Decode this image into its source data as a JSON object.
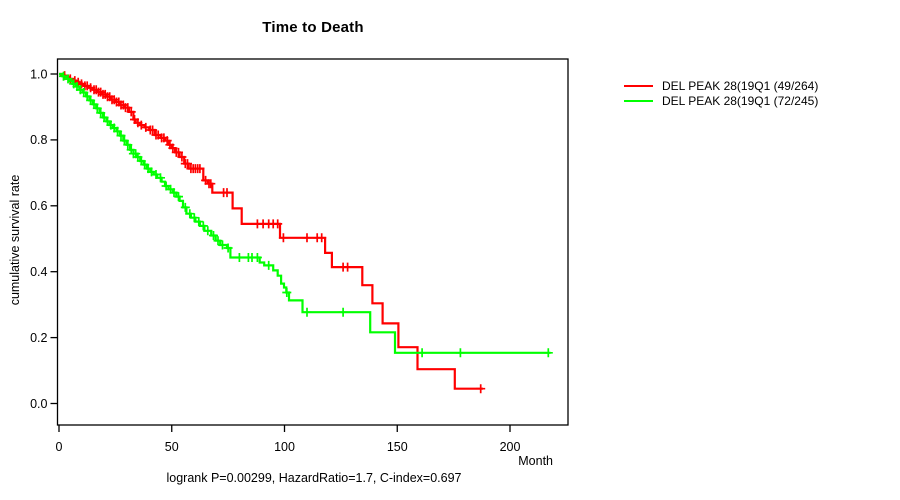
{
  "chart_data": {
    "type": "line",
    "subtype": "kaplan-meier-step",
    "title": "Time to Death",
    "xlabel": "Month",
    "ylabel": "cumulative survival rate",
    "annotation": "logrank P=0.00299, HazardRatio=1.7, C-index=0.697",
    "grid": false,
    "legend_position": "right-outside",
    "axis_color": "#000000",
    "background": "#ffffff",
    "xlim": [
      0,
      226
    ],
    "ylim": [
      0,
      1.0
    ],
    "x_axis": {
      "values": [
        0,
        50,
        100,
        150,
        200
      ],
      "labels": [
        "0",
        "50",
        "100",
        "150",
        "200"
      ]
    },
    "y_axis": {
      "values": [
        0,
        0.2,
        0.4,
        0.6,
        0.8,
        1.0
      ],
      "labels": [
        "0.0",
        "0.2",
        "0.4",
        "0.6",
        "0.8",
        "1.0"
      ]
    },
    "series": [
      {
        "name": "DEL PEAK 28(19Q1 (49/264)",
        "color": "#ff0000",
        "events_over_n": "49/264",
        "end_month": 188,
        "steps": [
          [
            0,
            1.0
          ],
          [
            1.5,
            0.995
          ],
          [
            3,
            0.99
          ],
          [
            4.5,
            0.985
          ],
          [
            6,
            0.98
          ],
          [
            7.5,
            0.975
          ],
          [
            9,
            0.97
          ],
          [
            11,
            0.964
          ],
          [
            13,
            0.958
          ],
          [
            15,
            0.952
          ],
          [
            17,
            0.945
          ],
          [
            19,
            0.938
          ],
          [
            21,
            0.931
          ],
          [
            23,
            0.922
          ],
          [
            25,
            0.915
          ],
          [
            27,
            0.906
          ],
          [
            29,
            0.898
          ],
          [
            31,
            0.885
          ],
          [
            33,
            0.862
          ],
          [
            34,
            0.852
          ],
          [
            36,
            0.845
          ],
          [
            38,
            0.838
          ],
          [
            40,
            0.83
          ],
          [
            42.5,
            0.815
          ],
          [
            45,
            0.806
          ],
          [
            47,
            0.798
          ],
          [
            48.5,
            0.785
          ],
          [
            50,
            0.775
          ],
          [
            51.5,
            0.762
          ],
          [
            53.5,
            0.748
          ],
          [
            55.5,
            0.728
          ],
          [
            57.5,
            0.713
          ],
          [
            64,
            0.677
          ],
          [
            66,
            0.667
          ],
          [
            68,
            0.64
          ],
          [
            77,
            0.592
          ],
          [
            81,
            0.545
          ],
          [
            98,
            0.503
          ],
          [
            118,
            0.457
          ],
          [
            121,
            0.414
          ],
          [
            134.5,
            0.359
          ],
          [
            139,
            0.304
          ],
          [
            143.5,
            0.243
          ],
          [
            150.5,
            0.171
          ],
          [
            159,
            0.104
          ],
          [
            175.5,
            0.045
          ]
        ],
        "censor_months": [
          2.5,
          5,
          7,
          8.5,
          10,
          11.5,
          12.5,
          14,
          15.5,
          16.5,
          17.5,
          18.5,
          19.5,
          20.5,
          21.5,
          22.5,
          23.5,
          24.5,
          25.5,
          26.5,
          27.5,
          28.5,
          29.5,
          30.5,
          32,
          33.5,
          35,
          36.5,
          38.5,
          40.5,
          41.5,
          43,
          44,
          45.5,
          46.5,
          48,
          49.2,
          50.5,
          52,
          53,
          54.5,
          56,
          57,
          58.5,
          59.5,
          60.5,
          61.5,
          62.5,
          65,
          66.5,
          67.3,
          73,
          74.5,
          88,
          90.5,
          93,
          95,
          97,
          99.5,
          110,
          114.5,
          116.5,
          126,
          128,
          187
        ]
      },
      {
        "name": "DEL PEAK 28(19Q1 (72/245)",
        "color": "#00ff00",
        "events_over_n": "72/245",
        "end_month": 218,
        "steps": [
          [
            0,
            1.0
          ],
          [
            1.5,
            0.993
          ],
          [
            3,
            0.985
          ],
          [
            4.5,
            0.978
          ],
          [
            6,
            0.97
          ],
          [
            7.5,
            0.962
          ],
          [
            9,
            0.952
          ],
          [
            10.5,
            0.944
          ],
          [
            12,
            0.932
          ],
          [
            13.5,
            0.92
          ],
          [
            15,
            0.908
          ],
          [
            16.5,
            0.896
          ],
          [
            18,
            0.882
          ],
          [
            19.5,
            0.868
          ],
          [
            21,
            0.856
          ],
          [
            22.5,
            0.845
          ],
          [
            24,
            0.836
          ],
          [
            25.5,
            0.826
          ],
          [
            27,
            0.813
          ],
          [
            28.5,
            0.798
          ],
          [
            30,
            0.785
          ],
          [
            31.5,
            0.77
          ],
          [
            33,
            0.758
          ],
          [
            34.5,
            0.748
          ],
          [
            36,
            0.736
          ],
          [
            37.5,
            0.725
          ],
          [
            39,
            0.713
          ],
          [
            40.5,
            0.703
          ],
          [
            42,
            0.695
          ],
          [
            43.5,
            0.685
          ],
          [
            45.5,
            0.673
          ],
          [
            47,
            0.66
          ],
          [
            48.5,
            0.65
          ],
          [
            50.5,
            0.64
          ],
          [
            52,
            0.628
          ],
          [
            53.5,
            0.615
          ],
          [
            55,
            0.595
          ],
          [
            56.5,
            0.576
          ],
          [
            58.5,
            0.564
          ],
          [
            60.5,
            0.552
          ],
          [
            62.5,
            0.539
          ],
          [
            64.5,
            0.524
          ],
          [
            67.5,
            0.51
          ],
          [
            69.5,
            0.494
          ],
          [
            71.5,
            0.481
          ],
          [
            74.5,
            0.472
          ],
          [
            76,
            0.443
          ],
          [
            89,
            0.428
          ],
          [
            91,
            0.419
          ],
          [
            95,
            0.404
          ],
          [
            97,
            0.388
          ],
          [
            98.5,
            0.364
          ],
          [
            99.8,
            0.352
          ],
          [
            100.8,
            0.337
          ],
          [
            102,
            0.313
          ],
          [
            108,
            0.277
          ],
          [
            138,
            0.216
          ],
          [
            149,
            0.154
          ]
        ],
        "censor_months": [
          2,
          4,
          6.5,
          8,
          9.5,
          11,
          12.5,
          14,
          15.5,
          17,
          18.5,
          20,
          21.5,
          23,
          24.5,
          26,
          27.5,
          29,
          30.5,
          32,
          33,
          34,
          35,
          36.5,
          38,
          39.5,
          41,
          43,
          45,
          47.5,
          49.5,
          51,
          53,
          56,
          58,
          60,
          62,
          64,
          66,
          68.5,
          70.5,
          72.5,
          75,
          80,
          84,
          85.6,
          88,
          93,
          101,
          110,
          126,
          161,
          178,
          217
        ]
      }
    ]
  }
}
